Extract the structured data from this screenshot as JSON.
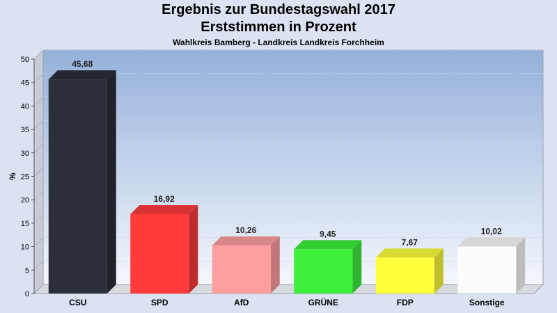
{
  "chart_data": {
    "type": "bar",
    "title": "Ergebnis zur Bundestagswahl 2017",
    "subtitle": "Erststimmen in Prozent",
    "subsubtitle": "Wahlkreis Bamberg - Landkreis Landkreis Forchheim",
    "ylabel": "%",
    "xlabel": "",
    "ylim": [
      0,
      50
    ],
    "yticks": [
      0,
      5,
      10,
      15,
      20,
      25,
      30,
      35,
      40,
      45,
      50
    ],
    "grid": true,
    "categories": [
      "CSU",
      "SPD",
      "AfD",
      "GRÜNE",
      "FDP",
      "Sonstige"
    ],
    "values": [
      45.68,
      16.92,
      10.26,
      9.45,
      7.67,
      10.02
    ],
    "value_labels": [
      "45,68",
      "16,92",
      "10,26",
      "9,45",
      "7,67",
      "10,02"
    ],
    "colors": [
      "#2b2f3a",
      "#ff3b3b",
      "#ff9e9e",
      "#3cf03c",
      "#ffff3c",
      "#fcfcfc"
    ]
  }
}
